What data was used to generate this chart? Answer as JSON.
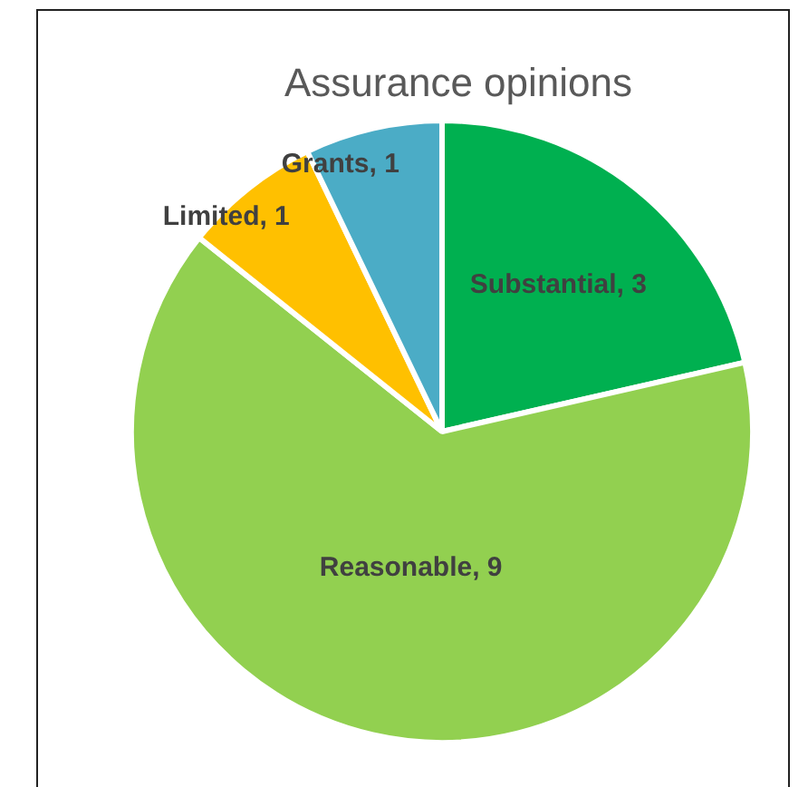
{
  "chart_data": {
    "type": "pie",
    "title": "Assurance opinions",
    "categories": [
      "Substantial",
      "Reasonable",
      "Limited",
      "Grants"
    ],
    "values": [
      3,
      9,
      1,
      1
    ],
    "colors": [
      "#00b050",
      "#92d050",
      "#ffc000",
      "#4bacc6"
    ],
    "value_labels": [
      ", 3",
      ", 9",
      ", 1",
      ", 1"
    ],
    "legend": false
  }
}
